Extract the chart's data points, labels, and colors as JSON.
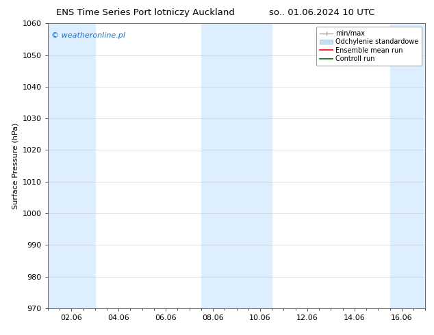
{
  "title_left": "ENS Time Series Port lotniczy Auckland",
  "title_right": "so.. 01.06.2024 10 UTC",
  "ylabel": "Surface Pressure (hPa)",
  "ylim": [
    970,
    1060
  ],
  "yticks": [
    970,
    980,
    990,
    1000,
    1010,
    1020,
    1030,
    1040,
    1050,
    1060
  ],
  "xlim_start": 1.0,
  "xlim_end": 17.0,
  "xtick_labels": [
    "02.06",
    "04.06",
    "06.06",
    "08.06",
    "10.06",
    "12.06",
    "14.06",
    "16.06"
  ],
  "xtick_positions": [
    2,
    4,
    6,
    8,
    10,
    12,
    14,
    16
  ],
  "shaded_bands": [
    {
      "xmin": 1.0,
      "xmax": 3.0
    },
    {
      "xmin": 7.5,
      "xmax": 10.5
    },
    {
      "xmin": 15.5,
      "xmax": 17.0
    }
  ],
  "shaded_color": "#ddeeff",
  "watermark_text": "© weatheronline.pl",
  "watermark_color": "#1a6ecc",
  "legend_labels": [
    "min/max",
    "Odchylenie standardowe",
    "Ensemble mean run",
    "Controll run"
  ],
  "legend_colors": [
    "#aaaaaa",
    "#c8dff0",
    "red",
    "green"
  ],
  "bg_color": "#ffffff",
  "grid_color": "#cccccc",
  "title_fontsize": 9.5,
  "tick_fontsize": 8,
  "ylabel_fontsize": 8,
  "legend_fontsize": 7
}
